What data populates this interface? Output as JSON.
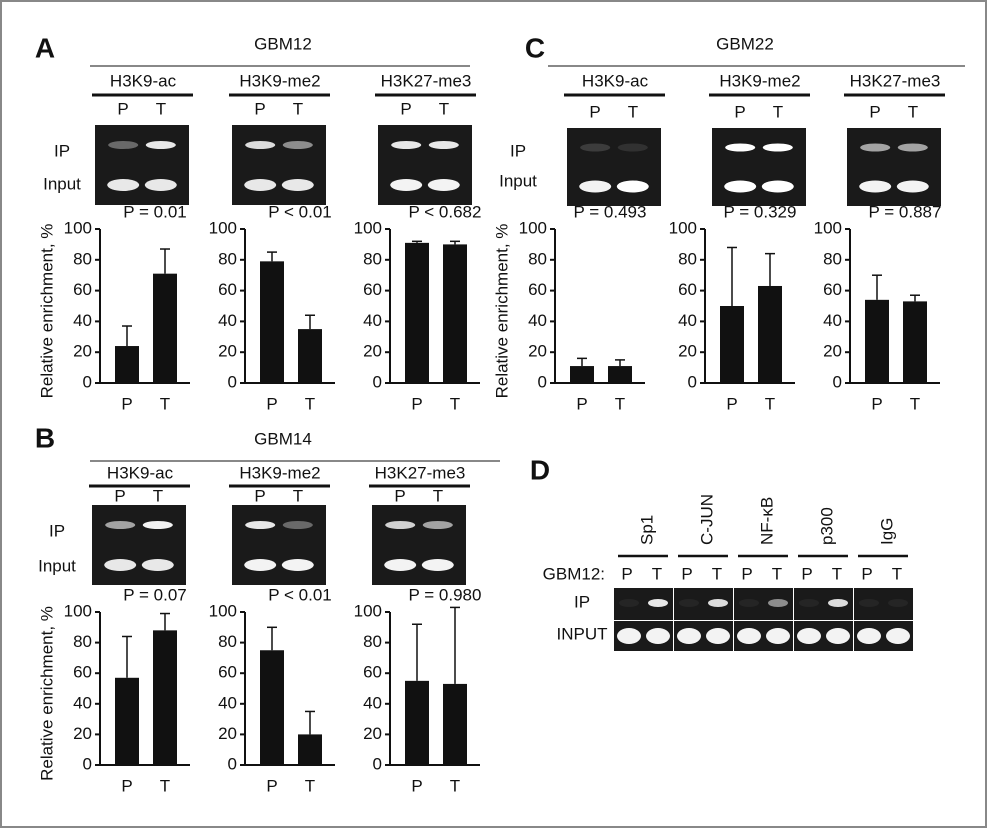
{
  "panels": [
    {
      "letter": "A",
      "sample": "GBM12",
      "antibodies": [
        "H3K9-ac",
        "H3K9-me2",
        "H3K27-me3"
      ],
      "lanes": [
        "P",
        "T"
      ],
      "row_labels": [
        "IP",
        "Input"
      ]
    },
    {
      "letter": "B",
      "sample": "GBM14",
      "antibodies": [
        "H3K9-ac",
        "H3K9-me2",
        "H3K27-me3"
      ],
      "lanes": [
        "P",
        "T"
      ],
      "row_labels": [
        "IP",
        "Input"
      ]
    },
    {
      "letter": "C",
      "sample": "GBM22",
      "antibodies": [
        "H3K9-ac",
        "H3K9-me2",
        "H3K27-me3"
      ],
      "lanes": [
        "P",
        "T"
      ],
      "row_labels": [
        "IP",
        "Input"
      ]
    },
    {
      "letter": "D",
      "sample": "GBM12:",
      "factors": [
        "Sp1",
        "C-JUN",
        "NF-κB",
        "p300",
        "IgG"
      ],
      "lanes": [
        "P",
        "T"
      ],
      "row_labels": [
        "IP",
        "INPUT"
      ]
    }
  ],
  "chart_data": [
    {
      "type": "bar",
      "y_label": "Relative enrichment, %",
      "annotation": "P = 0.01",
      "categories": [
        "P",
        "T"
      ],
      "values": [
        24,
        71
      ],
      "errors": [
        13,
        16
      ],
      "ylim": [
        0,
        100
      ],
      "yticks": [
        0,
        20,
        40,
        60,
        80,
        100
      ],
      "color": "#111111"
    },
    {
      "type": "bar",
      "annotation": "P < 0.01",
      "categories": [
        "P",
        "T"
      ],
      "values": [
        79,
        35
      ],
      "errors": [
        6,
        9
      ],
      "ylim": [
        0,
        100
      ],
      "yticks": [
        0,
        20,
        40,
        60,
        80,
        100
      ],
      "color": "#111111"
    },
    {
      "type": "bar",
      "annotation": "P < 0.682",
      "categories": [
        "P",
        "T"
      ],
      "values": [
        91,
        90
      ],
      "errors": [
        1,
        2
      ],
      "ylim": [
        0,
        100
      ],
      "yticks": [
        0,
        20,
        40,
        60,
        80,
        100
      ],
      "color": "#111111"
    },
    {
      "type": "bar",
      "y_label": "Relative enrichment, %",
      "annotation": "P = 0.07",
      "categories": [
        "P",
        "T"
      ],
      "values": [
        57,
        88
      ],
      "errors": [
        27,
        11
      ],
      "ylim": [
        0,
        100
      ],
      "yticks": [
        0,
        20,
        40,
        60,
        80,
        100
      ],
      "color": "#111111"
    },
    {
      "type": "bar",
      "annotation": "P < 0.01",
      "categories": [
        "P",
        "T"
      ],
      "values": [
        75,
        20
      ],
      "errors": [
        15,
        15
      ],
      "ylim": [
        0,
        100
      ],
      "yticks": [
        0,
        20,
        40,
        60,
        80,
        100
      ],
      "color": "#111111"
    },
    {
      "type": "bar",
      "annotation": "P = 0.980",
      "categories": [
        "P",
        "T"
      ],
      "values": [
        55,
        53
      ],
      "errors": [
        37,
        50
      ],
      "ylim": [
        0,
        100
      ],
      "yticks": [
        0,
        20,
        40,
        60,
        80,
        100
      ],
      "color": "#111111"
    },
    {
      "type": "bar",
      "y_label": "Relative enrichment, %",
      "annotation": "P = 0.493",
      "categories": [
        "P",
        "T"
      ],
      "values": [
        11,
        11
      ],
      "errors": [
        5,
        4
      ],
      "ylim": [
        0,
        100
      ],
      "yticks": [
        0,
        20,
        40,
        60,
        80,
        100
      ],
      "color": "#111111"
    },
    {
      "type": "bar",
      "annotation": "P = 0.329",
      "categories": [
        "P",
        "T"
      ],
      "values": [
        50,
        63
      ],
      "errors": [
        38,
        21
      ],
      "ylim": [
        0,
        100
      ],
      "yticks": [
        0,
        20,
        40,
        60,
        80,
        100
      ],
      "color": "#111111"
    },
    {
      "type": "bar",
      "annotation": "P = 0.887",
      "categories": [
        "P",
        "T"
      ],
      "values": [
        54,
        53
      ],
      "errors": [
        16,
        4
      ],
      "ylim": [
        0,
        100
      ],
      "yticks": [
        0,
        20,
        40,
        60,
        80,
        100
      ],
      "color": "#111111"
    }
  ]
}
